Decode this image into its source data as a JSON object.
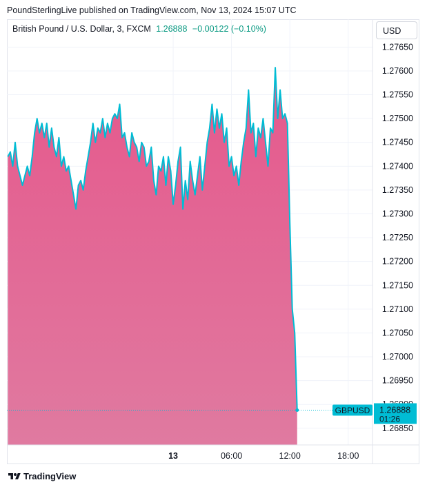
{
  "header": {
    "published": "PoundSterlingLive published on TradingView.com, Nov 13, 2024 15:07 UTC"
  },
  "legend": {
    "title": "British Pound / U.S. Dollar, 3, FXCM",
    "price": "1.26888",
    "change": "−0.00122 (−0.10%)"
  },
  "currency_button": "USD",
  "footer": {
    "brand": "TradingView"
  },
  "colors": {
    "line": "#00bcd4",
    "fill_top": "#e5588c",
    "fill_bottom": "#e07aa0",
    "axis_text": "#131722",
    "label_bg": "#00bcd4"
  },
  "chart_data": {
    "type": "area",
    "title": "British Pound / U.S. Dollar, 3, FXCM",
    "series": [
      {
        "name": "GBPUSD",
        "points": [
          [
            0,
            1.2742
          ],
          [
            0.25,
            1.2743
          ],
          [
            0.5,
            1.274
          ],
          [
            0.75,
            1.2745
          ],
          [
            1,
            1.274
          ],
          [
            1.25,
            1.2738
          ],
          [
            1.5,
            1.2736
          ],
          [
            1.75,
            1.2738
          ],
          [
            2,
            1.274
          ],
          [
            2.25,
            1.2738
          ],
          [
            2.5,
            1.2742
          ],
          [
            2.75,
            1.2747
          ],
          [
            3,
            1.275
          ],
          [
            3.25,
            1.2747
          ],
          [
            3.5,
            1.2749
          ],
          [
            3.75,
            1.2746
          ],
          [
            4,
            1.2749
          ],
          [
            4.25,
            1.2744
          ],
          [
            4.5,
            1.2748
          ],
          [
            4.75,
            1.2744
          ],
          [
            5,
            1.2742
          ],
          [
            5.25,
            1.2746
          ],
          [
            5.5,
            1.274
          ],
          [
            5.75,
            1.2742
          ],
          [
            6,
            1.2739
          ],
          [
            6.25,
            1.274
          ],
          [
            6.5,
            1.2737
          ],
          [
            6.75,
            1.2734
          ],
          [
            7,
            1.2731
          ],
          [
            7.25,
            1.2736
          ],
          [
            7.5,
            1.2737
          ],
          [
            7.75,
            1.2735
          ],
          [
            8,
            1.2739
          ],
          [
            8.25,
            1.2742
          ],
          [
            8.5,
            1.2745
          ],
          [
            8.75,
            1.2749
          ],
          [
            9,
            1.2745
          ],
          [
            9.25,
            1.2748
          ],
          [
            9.5,
            1.2747
          ],
          [
            9.75,
            1.275
          ],
          [
            10,
            1.2746
          ],
          [
            10.25,
            1.2749
          ],
          [
            10.5,
            1.2747
          ],
          [
            10.75,
            1.275
          ],
          [
            11,
            1.2751
          ],
          [
            11.25,
            1.275
          ],
          [
            11.5,
            1.2753
          ],
          [
            11.75,
            1.2746
          ],
          [
            12,
            1.2747
          ],
          [
            12.25,
            1.2744
          ],
          [
            12.5,
            1.2742
          ],
          [
            12.75,
            1.2747
          ],
          [
            13,
            1.2745
          ],
          [
            13.25,
            1.2744
          ],
          [
            13.5,
            1.2741
          ],
          [
            13.75,
            1.2745
          ],
          [
            14,
            1.2744
          ],
          [
            14.25,
            1.274
          ],
          [
            14.5,
            1.2741
          ],
          [
            14.75,
            1.2744
          ],
          [
            15,
            1.2737
          ],
          [
            15.25,
            1.2734
          ],
          [
            15.5,
            1.274
          ],
          [
            15.75,
            1.2739
          ],
          [
            16,
            1.2742
          ],
          [
            16.25,
            1.2736
          ],
          [
            16.5,
            1.2742
          ],
          [
            16.75,
            1.2739
          ],
          [
            17,
            1.2732
          ],
          [
            17.25,
            1.2736
          ],
          [
            17.5,
            1.2741
          ],
          [
            17.75,
            1.2744
          ],
          [
            18,
            1.2731
          ],
          [
            18.25,
            1.2737
          ],
          [
            18.5,
            1.2733
          ],
          [
            18.75,
            1.2741
          ],
          [
            19,
            1.2737
          ],
          [
            19.25,
            1.2734
          ],
          [
            19.5,
            1.2738
          ],
          [
            19.75,
            1.2742
          ],
          [
            20,
            1.2735
          ],
          [
            20.25,
            1.274
          ],
          [
            20.5,
            1.2745
          ],
          [
            20.75,
            1.2748
          ],
          [
            21,
            1.2753
          ],
          [
            21.25,
            1.2747
          ],
          [
            21.5,
            1.2752
          ],
          [
            21.75,
            1.2748
          ],
          [
            22,
            1.2751
          ],
          [
            22.25,
            1.2745
          ],
          [
            22.5,
            1.2748
          ],
          [
            22.75,
            1.274
          ],
          [
            23,
            1.2742
          ],
          [
            23.25,
            1.2738
          ],
          [
            23.5,
            1.274
          ],
          [
            23.75,
            1.2736
          ],
          [
            24,
            1.2741
          ],
          [
            24.25,
            1.2745
          ],
          [
            24.5,
            1.2748
          ],
          [
            24.75,
            1.2756
          ],
          [
            25,
            1.2747
          ],
          [
            25.25,
            1.2749
          ],
          [
            25.5,
            1.2742
          ],
          [
            25.75,
            1.2748
          ],
          [
            26,
            1.2746
          ],
          [
            26.25,
            1.275
          ],
          [
            26.5,
            1.2745
          ],
          [
            26.75,
            1.274
          ],
          [
            27,
            1.2748
          ],
          [
            27.25,
            1.2747
          ],
          [
            27.5,
            1.27607
          ],
          [
            27.75,
            1.275
          ],
          [
            28,
            1.2756
          ],
          [
            28.25,
            1.275
          ],
          [
            28.5,
            1.2751
          ],
          [
            28.75,
            1.2749
          ],
          [
            29,
            1.2728
          ],
          [
            29.25,
            1.271
          ],
          [
            29.5,
            1.2705
          ],
          [
            29.75,
            1.26888
          ]
        ]
      }
    ],
    "ylim": [
      1.26815,
      1.27665
    ],
    "yticks": [
      "1.26850",
      "1.26900",
      "1.26950",
      "1.27000",
      "1.27050",
      "1.27100",
      "1.27150",
      "1.27200",
      "1.27250",
      "1.27300",
      "1.27350",
      "1.27400",
      "1.27450",
      "1.27500",
      "1.27550",
      "1.27600",
      "1.27650"
    ],
    "x_unit": "hours since 07:00 UTC, Nov 12, 2024",
    "xticks": [
      {
        "label": "13",
        "x": 17
      },
      {
        "label": "06:00",
        "x": 23
      },
      {
        "label": "12:00",
        "x": 29
      },
      {
        "label": "18:00",
        "x": 35
      }
    ],
    "xlim": [
      -0.1,
      37.5
    ],
    "last": {
      "symbol": "GBPUSD",
      "value": "1.26888",
      "countdown": "01:26"
    }
  }
}
